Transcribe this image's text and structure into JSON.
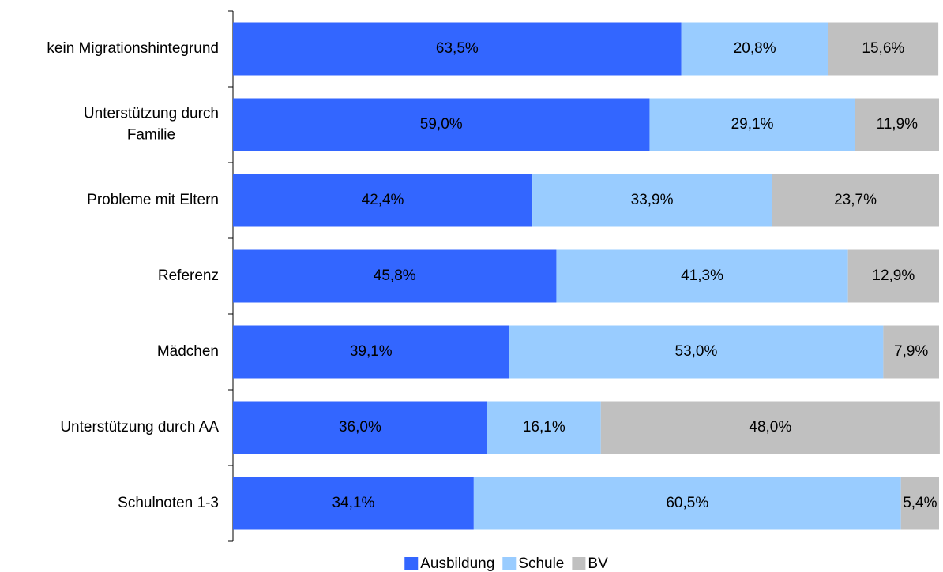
{
  "chart_data": {
    "type": "stacked-bar-horizontal",
    "categories": [
      "kein Migrationshintegrund",
      "Unterstützung durch\nFamilie",
      "Probleme mit Eltern",
      "Referenz",
      "Mädchen",
      "Unterstützung durch AA",
      "Schulnoten 1-3"
    ],
    "xlim": [
      0,
      100
    ],
    "series": [
      {
        "name": "Ausbildung",
        "color": "#3366ff",
        "values": [
          63.5,
          59.0,
          42.4,
          45.8,
          39.1,
          36.0,
          34.1
        ],
        "value_labels": [
          "63,5%",
          "59,0%",
          "42,4%",
          "45,8%",
          "39,1%",
          "36,0%",
          "34,1%"
        ]
      },
      {
        "name": "Schule",
        "color": "#99ccff",
        "values": [
          20.8,
          29.1,
          33.9,
          41.3,
          53.0,
          16.1,
          60.5
        ],
        "value_labels": [
          "20,8%",
          "29,1%",
          "33,9%",
          "41,3%",
          "53,0%",
          "16,1%",
          "60,5%"
        ]
      },
      {
        "name": "BV",
        "color": "#c0c0c0",
        "values": [
          15.6,
          11.9,
          23.7,
          12.9,
          7.9,
          48.0,
          5.4
        ],
        "value_labels": [
          "15,6%",
          "11,9%",
          "23,7%",
          "12,9%",
          "7,9%",
          "48,0%",
          "5,4%"
        ]
      }
    ]
  }
}
